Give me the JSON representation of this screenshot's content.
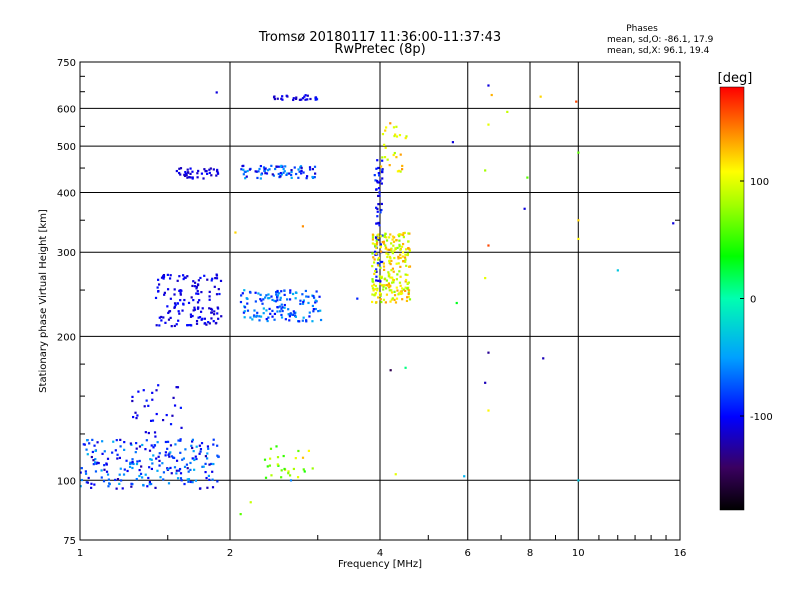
{
  "chart_data": {
    "type": "scatter",
    "title": "Tromsø 20180117 11:36:00-11:37:43",
    "subtitle": "RwPretec (8p)",
    "xlabel": "Frequency [MHz]",
    "ylabel": "Stationary phase Virtual Height [km]",
    "x_scale": "log2",
    "y_scale": "log",
    "xlim": [
      1,
      16
    ],
    "ylim": [
      75,
      750
    ],
    "x_ticks": [
      1,
      2,
      4,
      6,
      8,
      10,
      16
    ],
    "x_tick_labels": [
      "1",
      "2",
      "4",
      "6",
      "8",
      "10",
      "16"
    ],
    "y_ticks": [
      75,
      100,
      200,
      300,
      400,
      500,
      600,
      750
    ],
    "y_tick_labels": [
      "75",
      "100",
      "200",
      "300",
      "400",
      "500",
      "600",
      "750"
    ],
    "grid": true,
    "stats": {
      "header": "Phases",
      "line_o": "mean, sd,O: -86.1, 17.9",
      "line_x": "mean, sd,X:  96.1, 19.4"
    },
    "colorbar": {
      "label": "[deg]",
      "range": [
        -180,
        180
      ],
      "ticks": [
        100,
        0,
        -100
      ],
      "tick_labels": [
        "100",
        "0",
        "-100"
      ]
    },
    "clusters": [
      {
        "f": [
          1.0,
          1.9
        ],
        "h": [
          96,
          122
        ],
        "phase": [
          -125,
          -40
        ],
        "n": 230
      },
      {
        "f": [
          1.25,
          1.6
        ],
        "h": [
          122,
          160
        ],
        "phase": [
          -120,
          -90
        ],
        "n": 32
      },
      {
        "f": [
          1.42,
          1.92
        ],
        "h": [
          210,
          270
        ],
        "phase": [
          -120,
          -95
        ],
        "n": 140
      },
      {
        "f": [
          1.55,
          1.9
        ],
        "h": [
          428,
          450
        ],
        "phase": [
          -120,
          -100
        ],
        "n": 40
      },
      {
        "f": [
          2.1,
          3.0
        ],
        "h": [
          428,
          455
        ],
        "phase": [
          -120,
          -40
        ],
        "n": 80
      },
      {
        "f": [
          2.1,
          3.05
        ],
        "h": [
          215,
          250
        ],
        "phase": [
          -100,
          -40
        ],
        "n": 140
      },
      {
        "f": [
          2.4,
          3.0
        ],
        "h": [
          625,
          640
        ],
        "phase": [
          -120,
          -90
        ],
        "n": 28
      },
      {
        "f": [
          3.9,
          4.05
        ],
        "h": [
          260,
          470
        ],
        "phase": [
          -120,
          -80
        ],
        "n": 60
      },
      {
        "f": [
          3.85,
          4.6
        ],
        "h": [
          235,
          330
        ],
        "phase": [
          70,
          140
        ],
        "n": 230
      },
      {
        "f": [
          4.0,
          4.6
        ],
        "h": [
          440,
          560
        ],
        "phase": [
          80,
          140
        ],
        "n": 28
      },
      {
        "f": [
          2.35,
          3.0
        ],
        "h": [
          100,
          118
        ],
        "phase": [
          40,
          130
        ],
        "n": 28
      }
    ],
    "points": [
      {
        "f": 1.88,
        "h": 648,
        "phase": -110
      },
      {
        "f": 2.05,
        "h": 330,
        "phase": 120
      },
      {
        "f": 2.8,
        "h": 340,
        "phase": 140
      },
      {
        "f": 3.6,
        "h": 240,
        "phase": -90
      },
      {
        "f": 4.2,
        "h": 170,
        "phase": -150
      },
      {
        "f": 4.5,
        "h": 172,
        "phase": 10
      },
      {
        "f": 4.3,
        "h": 103,
        "phase": 100
      },
      {
        "f": 5.6,
        "h": 510,
        "phase": -110
      },
      {
        "f": 5.7,
        "h": 235,
        "phase": 30
      },
      {
        "f": 6.6,
        "h": 670,
        "phase": -110
      },
      {
        "f": 6.7,
        "h": 640,
        "phase": 130
      },
      {
        "f": 6.6,
        "h": 555,
        "phase": 100
      },
      {
        "f": 6.5,
        "h": 445,
        "phase": 80
      },
      {
        "f": 6.6,
        "h": 310,
        "phase": 160
      },
      {
        "f": 6.5,
        "h": 265,
        "phase": 100
      },
      {
        "f": 6.6,
        "h": 185,
        "phase": -130
      },
      {
        "f": 6.5,
        "h": 160,
        "phase": -120
      },
      {
        "f": 6.6,
        "h": 140,
        "phase": 110
      },
      {
        "f": 7.2,
        "h": 590,
        "phase": 90
      },
      {
        "f": 7.8,
        "h": 370,
        "phase": -110
      },
      {
        "f": 7.9,
        "h": 430,
        "phase": 60
      },
      {
        "f": 8.4,
        "h": 635,
        "phase": 120
      },
      {
        "f": 8.5,
        "h": 180,
        "phase": -120
      },
      {
        "f": 9.9,
        "h": 620,
        "phase": 160
      },
      {
        "f": 10.0,
        "h": 485,
        "phase": 60
      },
      {
        "f": 10.0,
        "h": 350,
        "phase": 120
      },
      {
        "f": 10.0,
        "h": 320,
        "phase": 110
      },
      {
        "f": 10.0,
        "h": 100,
        "phase": -30
      },
      {
        "f": 12.0,
        "h": 275,
        "phase": -30
      },
      {
        "f": 15.5,
        "h": 345,
        "phase": -110
      },
      {
        "f": 5.9,
        "h": 102,
        "phase": -40
      },
      {
        "f": 2.65,
        "h": 100,
        "phase": -60
      },
      {
        "f": 2.2,
        "h": 90,
        "phase": 90
      },
      {
        "f": 2.1,
        "h": 85,
        "phase": 60
      }
    ]
  }
}
